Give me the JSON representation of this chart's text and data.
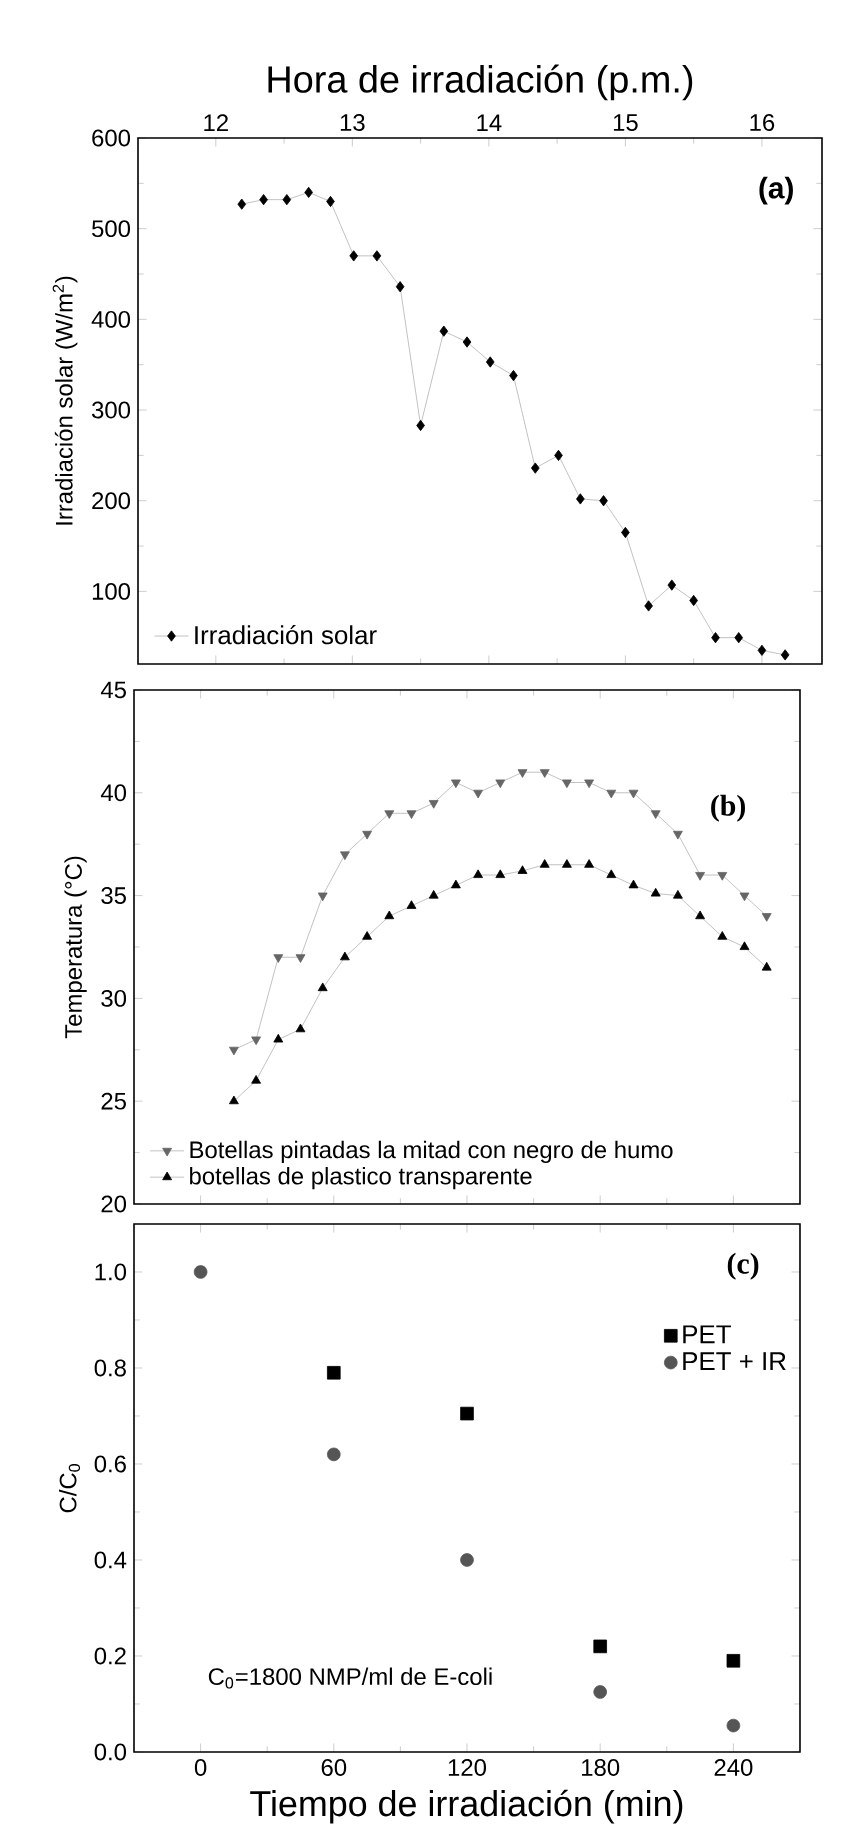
{
  "chart_data": [
    {
      "type": "line",
      "xlabel": "Hora de irradiación (p.m.)",
      "ylabel": "Irradiación solar (W/m$^{2}$)",
      "xlim": [
        11.43,
        16.44
      ],
      "ylim": [
        20,
        600
      ],
      "xticks": [
        12,
        13,
        14,
        15,
        16
      ],
      "yticks": [
        100,
        200,
        300,
        400,
        500,
        600
      ],
      "legend": "bottom left",
      "marker": "diamond",
      "annotations": [
        "(a)"
      ],
      "series": [
        {
          "name": "Irradiación solar",
          "color": "#000000",
          "x": [
            12.19,
            12.35,
            12.52,
            12.68,
            12.84,
            13.01,
            13.18,
            13.35,
            13.5,
            13.67,
            13.84,
            14.01,
            14.18,
            14.34,
            14.51,
            14.67,
            14.84,
            15.0,
            15.17,
            15.34,
            15.5,
            15.66,
            15.83,
            16.0,
            16.17
          ],
          "values": [
            527,
            532,
            532,
            540,
            530,
            470,
            470,
            436,
            283,
            387,
            375,
            353,
            338,
            236,
            250,
            202,
            200,
            165,
            84,
            107,
            90,
            49,
            49,
            35,
            30
          ]
        }
      ]
    },
    {
      "type": "line",
      "ylabel": "Temperatura (°C)",
      "xlim": [
        -30,
        270
      ],
      "ylim": [
        20,
        45
      ],
      "xticks": [
        0,
        60,
        120,
        180,
        240
      ],
      "yticks": [
        20,
        25,
        30,
        35,
        40,
        45
      ],
      "tick_labels": "y",
      "legend": "bottom left",
      "annotations": [
        "(b)"
      ],
      "series": [
        {
          "name": "Botellas pintadas la mitad con negro de humo",
          "color": "#666666",
          "marker": "triangle-down",
          "x": [
            15,
            25,
            35,
            45,
            55,
            65,
            75,
            85,
            95,
            105,
            115,
            125,
            135,
            145,
            155,
            165,
            175,
            185,
            195,
            205,
            215,
            225,
            235,
            245,
            255
          ],
          "values": [
            27.5,
            28,
            32,
            32,
            35,
            37,
            38,
            39,
            39,
            39.5,
            40.5,
            40,
            40.5,
            41,
            41,
            40.5,
            40.5,
            40,
            40,
            39,
            38,
            36,
            36,
            35,
            34
          ]
        },
        {
          "name": "botellas de plastico transparente",
          "color": "#000000",
          "marker": "triangle",
          "x": [
            15,
            25,
            35,
            45,
            55,
            65,
            75,
            85,
            95,
            105,
            115,
            125,
            135,
            145,
            155,
            165,
            175,
            185,
            195,
            205,
            215,
            225,
            235,
            245,
            255
          ],
          "values": [
            25,
            26,
            28,
            28.5,
            30.5,
            32,
            33,
            34,
            34.5,
            35,
            35.5,
            36,
            36,
            36.2,
            36.5,
            36.5,
            36.5,
            36,
            35.5,
            35.1,
            35,
            34,
            33,
            32.5,
            31.5
          ]
        }
      ]
    },
    {
      "type": "scatter",
      "xlabel": "Tiempo de irradiación (min)",
      "ylabel": "C/C$_{0}$",
      "xlim": [
        -30,
        270
      ],
      "ylim": [
        0,
        1.1
      ],
      "xticks": [
        0,
        60,
        120,
        180,
        240
      ],
      "yticks": [
        {
          "value": 0,
          "label": "0.0"
        },
        {
          "value": 0.2,
          "label": "0.2"
        },
        {
          "value": 0.4,
          "label": "0.4"
        },
        {
          "value": 0.6,
          "label": "0.6"
        },
        {
          "value": 0.8,
          "label": "0.8"
        },
        {
          "value": 1.0,
          "label": "1.0"
        }
      ],
      "legend": "top right",
      "annotations": [
        "(c)",
        "C$_{0}$=1800 NMP/ml de E-coli"
      ],
      "x": [
        0,
        60,
        120,
        180,
        240
      ],
      "series": [
        {
          "name": "PET",
          "color": "#000000",
          "marker": "square",
          "values": [
            null,
            0.79,
            0.705,
            0.22,
            0.19
          ]
        },
        {
          "name": "PET + IR",
          "color": "#555555",
          "marker": "circle",
          "values": [
            1.0,
            0.62,
            0.4,
            0.125,
            0.055
          ]
        }
      ]
    }
  ]
}
